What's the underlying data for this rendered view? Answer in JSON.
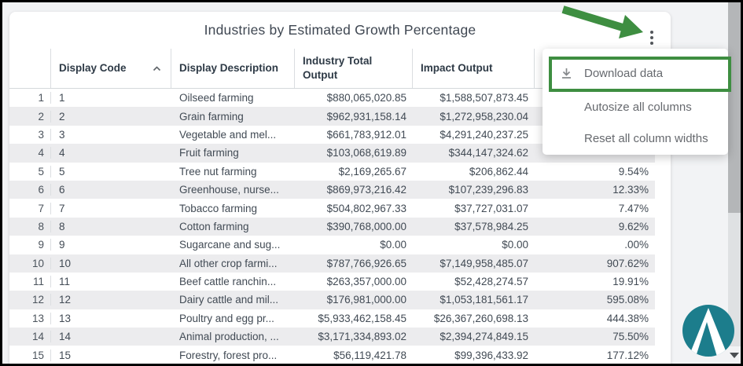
{
  "card": {
    "title": "Industries by Estimated Growth Percentage"
  },
  "context_menu": {
    "items": [
      {
        "label": "Download data",
        "icon": "download-icon",
        "highlighted": true
      },
      {
        "label": "Autosize all columns"
      },
      {
        "label": "Reset all column widths"
      }
    ]
  },
  "annotations": {
    "arrow_color": "#3e8e41",
    "highlight_box_color": "#3e8e41",
    "note": "green arrow points to kebab menu; green box highlights Download data"
  },
  "table": {
    "columns": [
      {
        "label": "",
        "name": "row-number"
      },
      {
        "label": "Display Code",
        "sort": "asc"
      },
      {
        "label": "Display Description"
      },
      {
        "label": "Industry Total Output"
      },
      {
        "label": "Impact Output"
      },
      {
        "label": ""
      }
    ],
    "rows": [
      {
        "num": "1",
        "code": "1",
        "description": "Oilseed farming",
        "industry_total_output": "$880,065,020.85",
        "impact_output": "$1,588,507,873.45",
        "growth_pct": ""
      },
      {
        "num": "2",
        "code": "2",
        "description": "Grain farming",
        "industry_total_output": "$962,931,158.14",
        "impact_output": "$1,272,958,230.04",
        "growth_pct": ""
      },
      {
        "num": "3",
        "code": "3",
        "description": "Vegetable and mel...",
        "industry_total_output": "$661,783,912.01",
        "impact_output": "$4,291,240,237.25",
        "growth_pct": ""
      },
      {
        "num": "4",
        "code": "4",
        "description": "Fruit farming",
        "industry_total_output": "$103,068,619.89",
        "impact_output": "$344,147,324.62",
        "growth_pct": ""
      },
      {
        "num": "5",
        "code": "5",
        "description": "Tree nut farming",
        "industry_total_output": "$2,169,265.67",
        "impact_output": "$206,862.44",
        "growth_pct": "9.54%"
      },
      {
        "num": "6",
        "code": "6",
        "description": "Greenhouse, nurse...",
        "industry_total_output": "$869,973,216.42",
        "impact_output": "$107,239,296.83",
        "growth_pct": "12.33%"
      },
      {
        "num": "7",
        "code": "7",
        "description": "Tobacco farming",
        "industry_total_output": "$504,802,967.33",
        "impact_output": "$37,727,031.07",
        "growth_pct": "7.47%"
      },
      {
        "num": "8",
        "code": "8",
        "description": "Cotton farming",
        "industry_total_output": "$390,768,000.00",
        "impact_output": "$37,578,984.25",
        "growth_pct": "9.62%"
      },
      {
        "num": "9",
        "code": "9",
        "description": "Sugarcane and sug...",
        "industry_total_output": "$0.00",
        "impact_output": "$0.00",
        "growth_pct": ".00%"
      },
      {
        "num": "10",
        "code": "10",
        "description": "All other crop farmi...",
        "industry_total_output": "$787,766,926.65",
        "impact_output": "$7,149,958,485.07",
        "growth_pct": "907.62%"
      },
      {
        "num": "11",
        "code": "11",
        "description": "Beef cattle ranchin...",
        "industry_total_output": "$263,357,000.00",
        "impact_output": "$52,428,274.57",
        "growth_pct": "19.91%"
      },
      {
        "num": "12",
        "code": "12",
        "description": "Dairy cattle and mil...",
        "industry_total_output": "$176,981,000.00",
        "impact_output": "$1,053,181,561.17",
        "growth_pct": "595.08%"
      },
      {
        "num": "13",
        "code": "13",
        "description": "Poultry and egg pr...",
        "industry_total_output": "$5,933,462,158.45",
        "impact_output": "$26,367,260,698.13",
        "growth_pct": "444.38%"
      },
      {
        "num": "14",
        "code": "14",
        "description": "Animal production, ...",
        "industry_total_output": "$3,171,334,893.02",
        "impact_output": "$2,394,274,849.15",
        "growth_pct": "75.50%"
      },
      {
        "num": "15",
        "code": "15",
        "description": "Forestry, forest pro...",
        "industry_total_output": "$56,119,421.78",
        "impact_output": "$99,396,433.92",
        "growth_pct": "177.12%"
      }
    ]
  },
  "logo": {
    "letter": "A",
    "color": "#1c7d8c"
  }
}
